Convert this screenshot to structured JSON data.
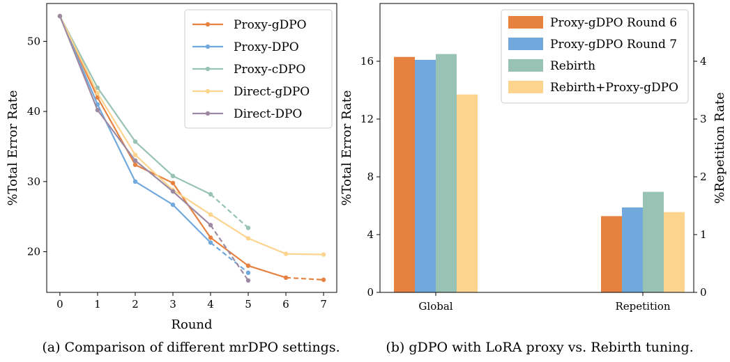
{
  "chart_data": [
    {
      "type": "line",
      "caption": "(a) Comparison of different mrDPO settings.",
      "xlabel": "Round",
      "ylabel": "%Total Error Rate",
      "x_ticks": [
        0,
        1,
        2,
        3,
        4,
        5,
        6,
        7
      ],
      "y_ticks": [
        20,
        30,
        40,
        50
      ],
      "xlim": [
        -0.35,
        7.35
      ],
      "ylim": [
        14.2,
        55.4
      ],
      "legend_position": "upper right",
      "series": [
        {
          "name": "Proxy-gDPO",
          "color": "#e6813f",
          "x": [
            0,
            1,
            2,
            3,
            4,
            5,
            6
          ],
          "y": [
            53.6,
            42.0,
            32.4,
            29.8,
            22.0,
            18.0,
            16.3
          ],
          "dashed_x": [
            6,
            7
          ],
          "dashed_y": [
            16.3,
            16.0
          ]
        },
        {
          "name": "Proxy-DPO",
          "color": "#72a9dc",
          "x": [
            0,
            1,
            2,
            3,
            4
          ],
          "y": [
            53.6,
            41.0,
            30.0,
            26.7,
            21.3
          ],
          "dashed_x": [
            4,
            5
          ],
          "dashed_y": [
            21.3,
            17.0
          ]
        },
        {
          "name": "Proxy-cDPO",
          "color": "#97c2b4",
          "x": [
            0,
            1,
            2,
            3,
            4
          ],
          "y": [
            53.6,
            43.4,
            35.7,
            30.8,
            28.2
          ],
          "dashed_x": [
            4,
            5
          ],
          "dashed_y": [
            28.2,
            23.4
          ]
        },
        {
          "name": "Direct-gDPO",
          "color": "#fcd48e",
          "x": [
            0,
            1,
            2,
            3,
            4,
            5,
            6,
            7
          ],
          "y": [
            53.6,
            42.6,
            33.8,
            28.8,
            25.3,
            21.9,
            19.7,
            19.6
          ],
          "dashed_x": [],
          "dashed_y": []
        },
        {
          "name": "Direct-DPO",
          "color": "#9d8aa2",
          "x": [
            0,
            1,
            2,
            3,
            4
          ],
          "y": [
            53.6,
            40.2,
            33.0,
            28.6,
            23.8
          ],
          "dashed_x": [
            4,
            5
          ],
          "dashed_y": [
            23.8,
            15.9
          ]
        }
      ]
    },
    {
      "type": "bar",
      "caption": "(b) gDPO with LoRA proxy vs. Rebirth tuning.",
      "categories": [
        "Global",
        "Repetition"
      ],
      "ylabel": "%Total Error Rate",
      "y2label": "%Repetition Rate",
      "y_ticks": [
        0,
        4,
        8,
        12,
        16
      ],
      "y2_ticks": [
        0,
        1,
        2,
        3,
        4
      ],
      "ylim": [
        0,
        20
      ],
      "y2lim": [
        0,
        5
      ],
      "legend_position": "upper right",
      "series": [
        {
          "name": "Proxy-gDPO Round 6",
          "color": "#e6813f",
          "values": [
            16.3,
            1.32
          ]
        },
        {
          "name": "Proxy-gDPO Round 7",
          "color": "#72a9dc",
          "values": [
            16.1,
            1.47
          ]
        },
        {
          "name": "Rebirth",
          "color": "#97c2b4",
          "values": [
            16.5,
            1.74
          ]
        },
        {
          "name": "Rebirth+Proxy-gDPO",
          "color": "#fcd48e",
          "values": [
            13.7,
            1.39
          ]
        }
      ]
    }
  ]
}
